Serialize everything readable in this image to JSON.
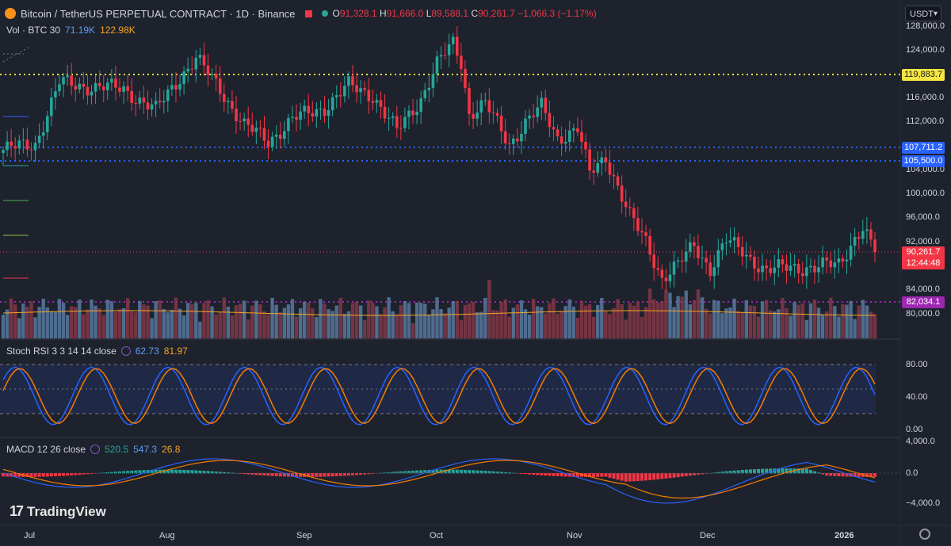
{
  "header": {
    "title": "Bitcoin / TetherUS PERPETUAL CONTRACT · 1D · Binance",
    "ohlc": {
      "o_label": "O",
      "o": "91,328.1",
      "h_label": "H",
      "h": "91,666.0",
      "l_label": "L",
      "l": "89,588.1",
      "c_label": "C",
      "c": "90,261.7",
      "change": "−1,066.3 (−1.17%)"
    },
    "currency_button": "USDT"
  },
  "volume": {
    "label": "Vol · BTC 30",
    "val1": "71.19K",
    "val2": "122.98K"
  },
  "rsi": {
    "label": "Stoch RSI 3 3 14 14 close",
    "k": "62.73",
    "d": "81.97"
  },
  "macd": {
    "label": "MACD 12 26 close",
    "hist": "520.5",
    "macd": "547.3",
    "signal": "26.8"
  },
  "price_axis": [
    "128,000.0",
    "124,000.0",
    "116,000.0",
    "112,000.0",
    "104,000.0",
    "100,000.0",
    "96,000.0",
    "92,000.0",
    "84,000.0",
    "80,000.0"
  ],
  "rsi_axis": [
    "80.00",
    "40.00",
    "0.00"
  ],
  "macd_axis": [
    "4,000.0",
    "0.0",
    "−4,000.0"
  ],
  "tags": {
    "level_yellow": "119,883.7",
    "level_blue1": "107,711.2",
    "level_blue2": "105,500.0",
    "last_price": "90,261.7",
    "countdown": "12:44:48",
    "level_magenta": "82,034.1"
  },
  "months": [
    "Jul",
    "Aug",
    "Sep",
    "Oct",
    "Nov",
    "Dec",
    "2026"
  ],
  "logo_text": "TradingView",
  "colors": {
    "up": "#26a69a",
    "down": "#f23645",
    "bg": "#1e222d",
    "yellow": "#f5e642",
    "blue": "#2962ff",
    "magenta": "#9c27b0"
  },
  "chart_data": {
    "type": "candlestick",
    "hlines": [
      119883.7,
      107711.2,
      105500.0,
      82034.1
    ],
    "ylim": [
      77000,
      129000
    ],
    "key_points": [
      {
        "x": 0,
        "y": 107000
      },
      {
        "x": 8,
        "y": 108000
      },
      {
        "x": 14,
        "y": 118000
      },
      {
        "x": 20,
        "y": 117500
      },
      {
        "x": 30,
        "y": 117000
      },
      {
        "x": 38,
        "y": 113500
      },
      {
        "x": 44,
        "y": 119000
      },
      {
        "x": 48,
        "y": 122000
      },
      {
        "x": 54,
        "y": 117000
      },
      {
        "x": 60,
        "y": 111000
      },
      {
        "x": 66,
        "y": 108500
      },
      {
        "x": 72,
        "y": 112000
      },
      {
        "x": 80,
        "y": 114000
      },
      {
        "x": 86,
        "y": 117500
      },
      {
        "x": 92,
        "y": 116000
      },
      {
        "x": 98,
        "y": 110000
      },
      {
        "x": 104,
        "y": 115500
      },
      {
        "x": 108,
        "y": 121000
      },
      {
        "x": 112,
        "y": 124500
      },
      {
        "x": 114,
        "y": 121500
      },
      {
        "x": 116,
        "y": 113000
      },
      {
        "x": 120,
        "y": 114500
      },
      {
        "x": 126,
        "y": 108000
      },
      {
        "x": 130,
        "y": 111500
      },
      {
        "x": 134,
        "y": 114000
      },
      {
        "x": 138,
        "y": 109000
      },
      {
        "x": 143,
        "y": 110500
      },
      {
        "x": 146,
        "y": 103000
      },
      {
        "x": 150,
        "y": 106000
      },
      {
        "x": 156,
        "y": 96000
      },
      {
        "x": 160,
        "y": 92000
      },
      {
        "x": 164,
        "y": 86000
      },
      {
        "x": 168,
        "y": 88000
      },
      {
        "x": 172,
        "y": 91500
      },
      {
        "x": 176,
        "y": 87500
      },
      {
        "x": 180,
        "y": 92000
      },
      {
        "x": 184,
        "y": 90500
      },
      {
        "x": 190,
        "y": 87000
      },
      {
        "x": 196,
        "y": 88000
      },
      {
        "x": 202,
        "y": 87500
      },
      {
        "x": 208,
        "y": 88500
      },
      {
        "x": 212,
        "y": 92500
      },
      {
        "x": 214,
        "y": 94000
      },
      {
        "x": 216,
        "y": 91300
      },
      {
        "x": 217,
        "y": 90261.7
      }
    ]
  }
}
